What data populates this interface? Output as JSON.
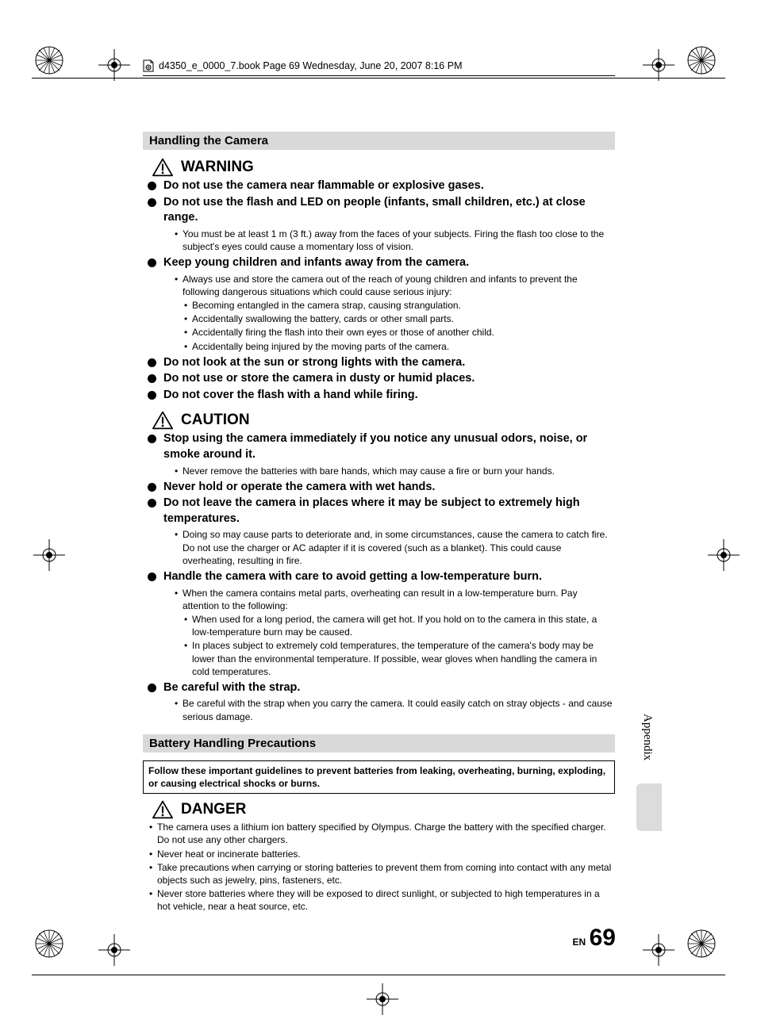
{
  "book_header": "d4350_e_0000_7.book  Page 69  Wednesday, June 20, 2007  8:16 PM",
  "section1_title": "Handling the Camera",
  "warning_label": "WARNING",
  "caution_label": "CAUTION",
  "danger_label": "DANGER",
  "warning_items": [
    {
      "text": "Do not use the camera near flammable or explosive gases."
    },
    {
      "text": "Do not use the flash and LED on people (infants, small children, etc.) at close range.",
      "subs": [
        "You must be at least 1 m (3 ft.) away from the faces of your subjects. Firing the flash too close to the subject's eyes could cause a momentary loss of vision."
      ]
    },
    {
      "text": "Keep young children and infants away from the camera.",
      "subs": [
        "Always use and store the camera out of the reach of young children and infants to prevent the following dangerous situations which could cause serious injury:"
      ],
      "subsubs": [
        "Becoming entangled in the camera strap, causing strangulation.",
        "Accidentally swallowing the battery, cards or other small parts.",
        "Accidentally firing the flash into their own eyes or those of another child.",
        "Accidentally being injured by the moving parts of the camera."
      ]
    },
    {
      "text": "Do not look at the sun or strong lights with the camera."
    },
    {
      "text": "Do not use or store the camera in dusty or humid places."
    },
    {
      "text": "Do not cover the flash with a hand while firing."
    }
  ],
  "caution_items": [
    {
      "text": "Stop using the camera immediately if you notice any unusual odors, noise, or smoke around it.",
      "subs": [
        "Never remove the batteries with bare hands, which may cause a fire or burn your hands."
      ]
    },
    {
      "text": "Never hold or operate the camera with wet hands."
    },
    {
      "text": "Do not leave the camera in places where it may be subject to extremely high temperatures.",
      "subs": [
        "Doing so may cause parts to deteriorate and, in some circumstances, cause the camera to catch fire. Do not use the charger or AC adapter if it is covered (such as a blanket). This could cause overheating, resulting in fire."
      ]
    },
    {
      "text": "Handle the camera with care to avoid getting a low-temperature burn.",
      "subs": [
        "When the camera contains metal parts, overheating can result in a low-temperature burn. Pay attention to the following:"
      ],
      "subsubs": [
        "When used for a long period, the camera will get hot. If you hold on to the camera in this state, a low-temperature burn may be caused.",
        "In places subject to extremely cold temperatures, the temperature of the camera's body may be lower than the environmental temperature. If possible, wear gloves when handling the camera in cold temperatures."
      ]
    },
    {
      "text": "Be careful with the strap.",
      "subs": [
        "Be careful with the strap when you carry the camera. It could easily catch on stray objects - and cause serious damage."
      ]
    }
  ],
  "section2_title": "Battery Handling Precautions",
  "box_note": "Follow these important guidelines to prevent batteries from leaking, overheating, burning, exploding, or causing electrical shocks or burns.",
  "danger_items": [
    "The camera uses a lithium ion battery specified by Olympus. Charge the battery with the specified charger. Do not use any other chargers.",
    "Never heat or incinerate batteries.",
    "Take precautions when carrying or storing batteries to prevent them from coming into contact with any metal objects such as jewelry, pins, fasteners, etc.",
    "Never store batteries where they will be exposed to direct sunlight, or subjected to high temperatures in a hot vehicle, near a heat source, etc."
  ],
  "side_tab": "Appendix",
  "page_en": "EN",
  "page_num": "69",
  "colors": {
    "section_bg": "#d9d9d9",
    "tab_bg": "#dcdcdc",
    "text": "#000000",
    "page_bg": "#ffffff"
  }
}
